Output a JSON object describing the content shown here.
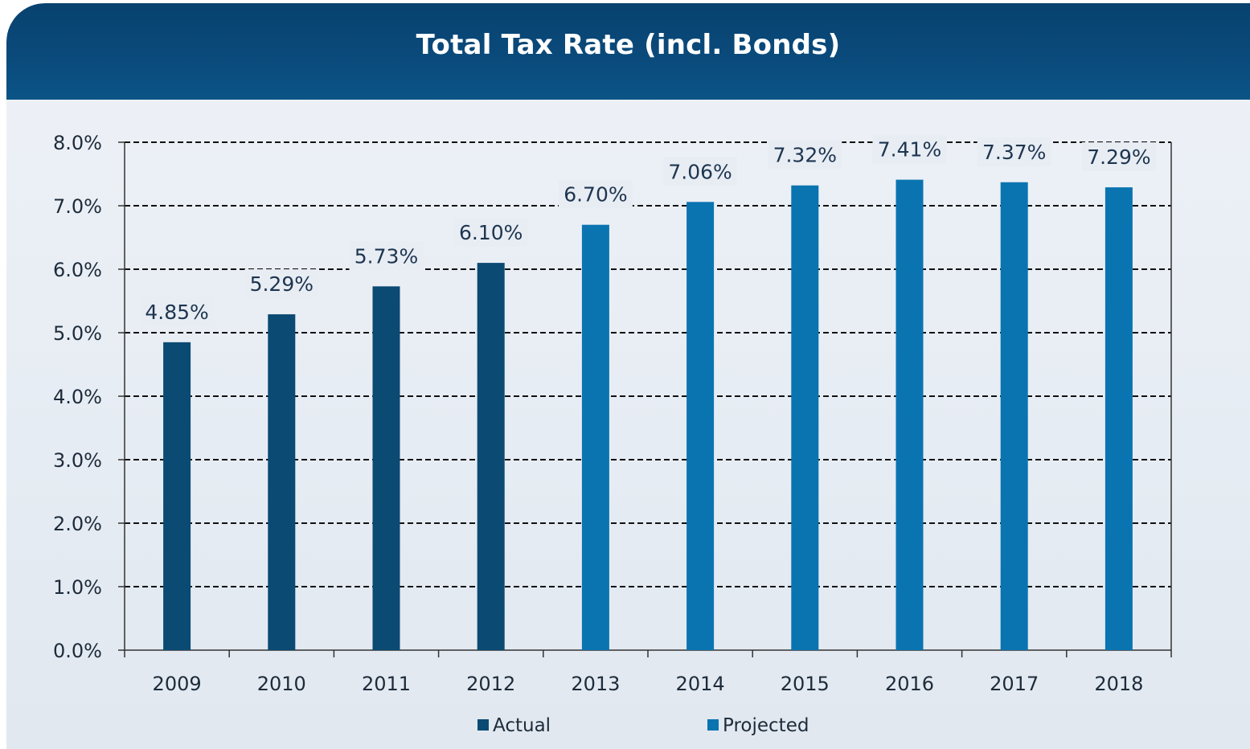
{
  "title": "Total Tax Rate (incl. Bonds)",
  "colors": {
    "header": "#0a4a7b",
    "actual": "#0a4a73",
    "projected": "#0a74b0",
    "background": "#e8edf3"
  },
  "chart_data": {
    "type": "bar",
    "title": "Total Tax Rate (incl. Bonds)",
    "categories": [
      "2009",
      "2010",
      "2011",
      "2012",
      "2013",
      "2014",
      "2015",
      "2016",
      "2017",
      "2018"
    ],
    "values": [
      4.85,
      5.29,
      5.73,
      6.1,
      6.7,
      7.06,
      7.32,
      7.41,
      7.37,
      7.29
    ],
    "data_labels": [
      "4.85%",
      "5.29%",
      "5.73%",
      "6.10%",
      "6.70%",
      "7.06%",
      "7.32%",
      "7.41%",
      "7.37%",
      "7.29%"
    ],
    "bar_series": [
      "Actual",
      "Actual",
      "Actual",
      "Actual",
      "Projected",
      "Projected",
      "Projected",
      "Projected",
      "Projected",
      "Projected"
    ],
    "series": [
      {
        "name": "Actual",
        "color": "#0a4a73"
      },
      {
        "name": "Projected",
        "color": "#0a74b0"
      }
    ],
    "y_ticks": [
      "0.0%",
      "1.0%",
      "2.0%",
      "3.0%",
      "4.0%",
      "5.0%",
      "6.0%",
      "7.0%",
      "8.0%"
    ],
    "ylim": [
      0,
      8
    ],
    "xlabel": "",
    "ylabel": "",
    "grid": true,
    "grid_style": "dashed",
    "legend_position": "bottom-center"
  }
}
